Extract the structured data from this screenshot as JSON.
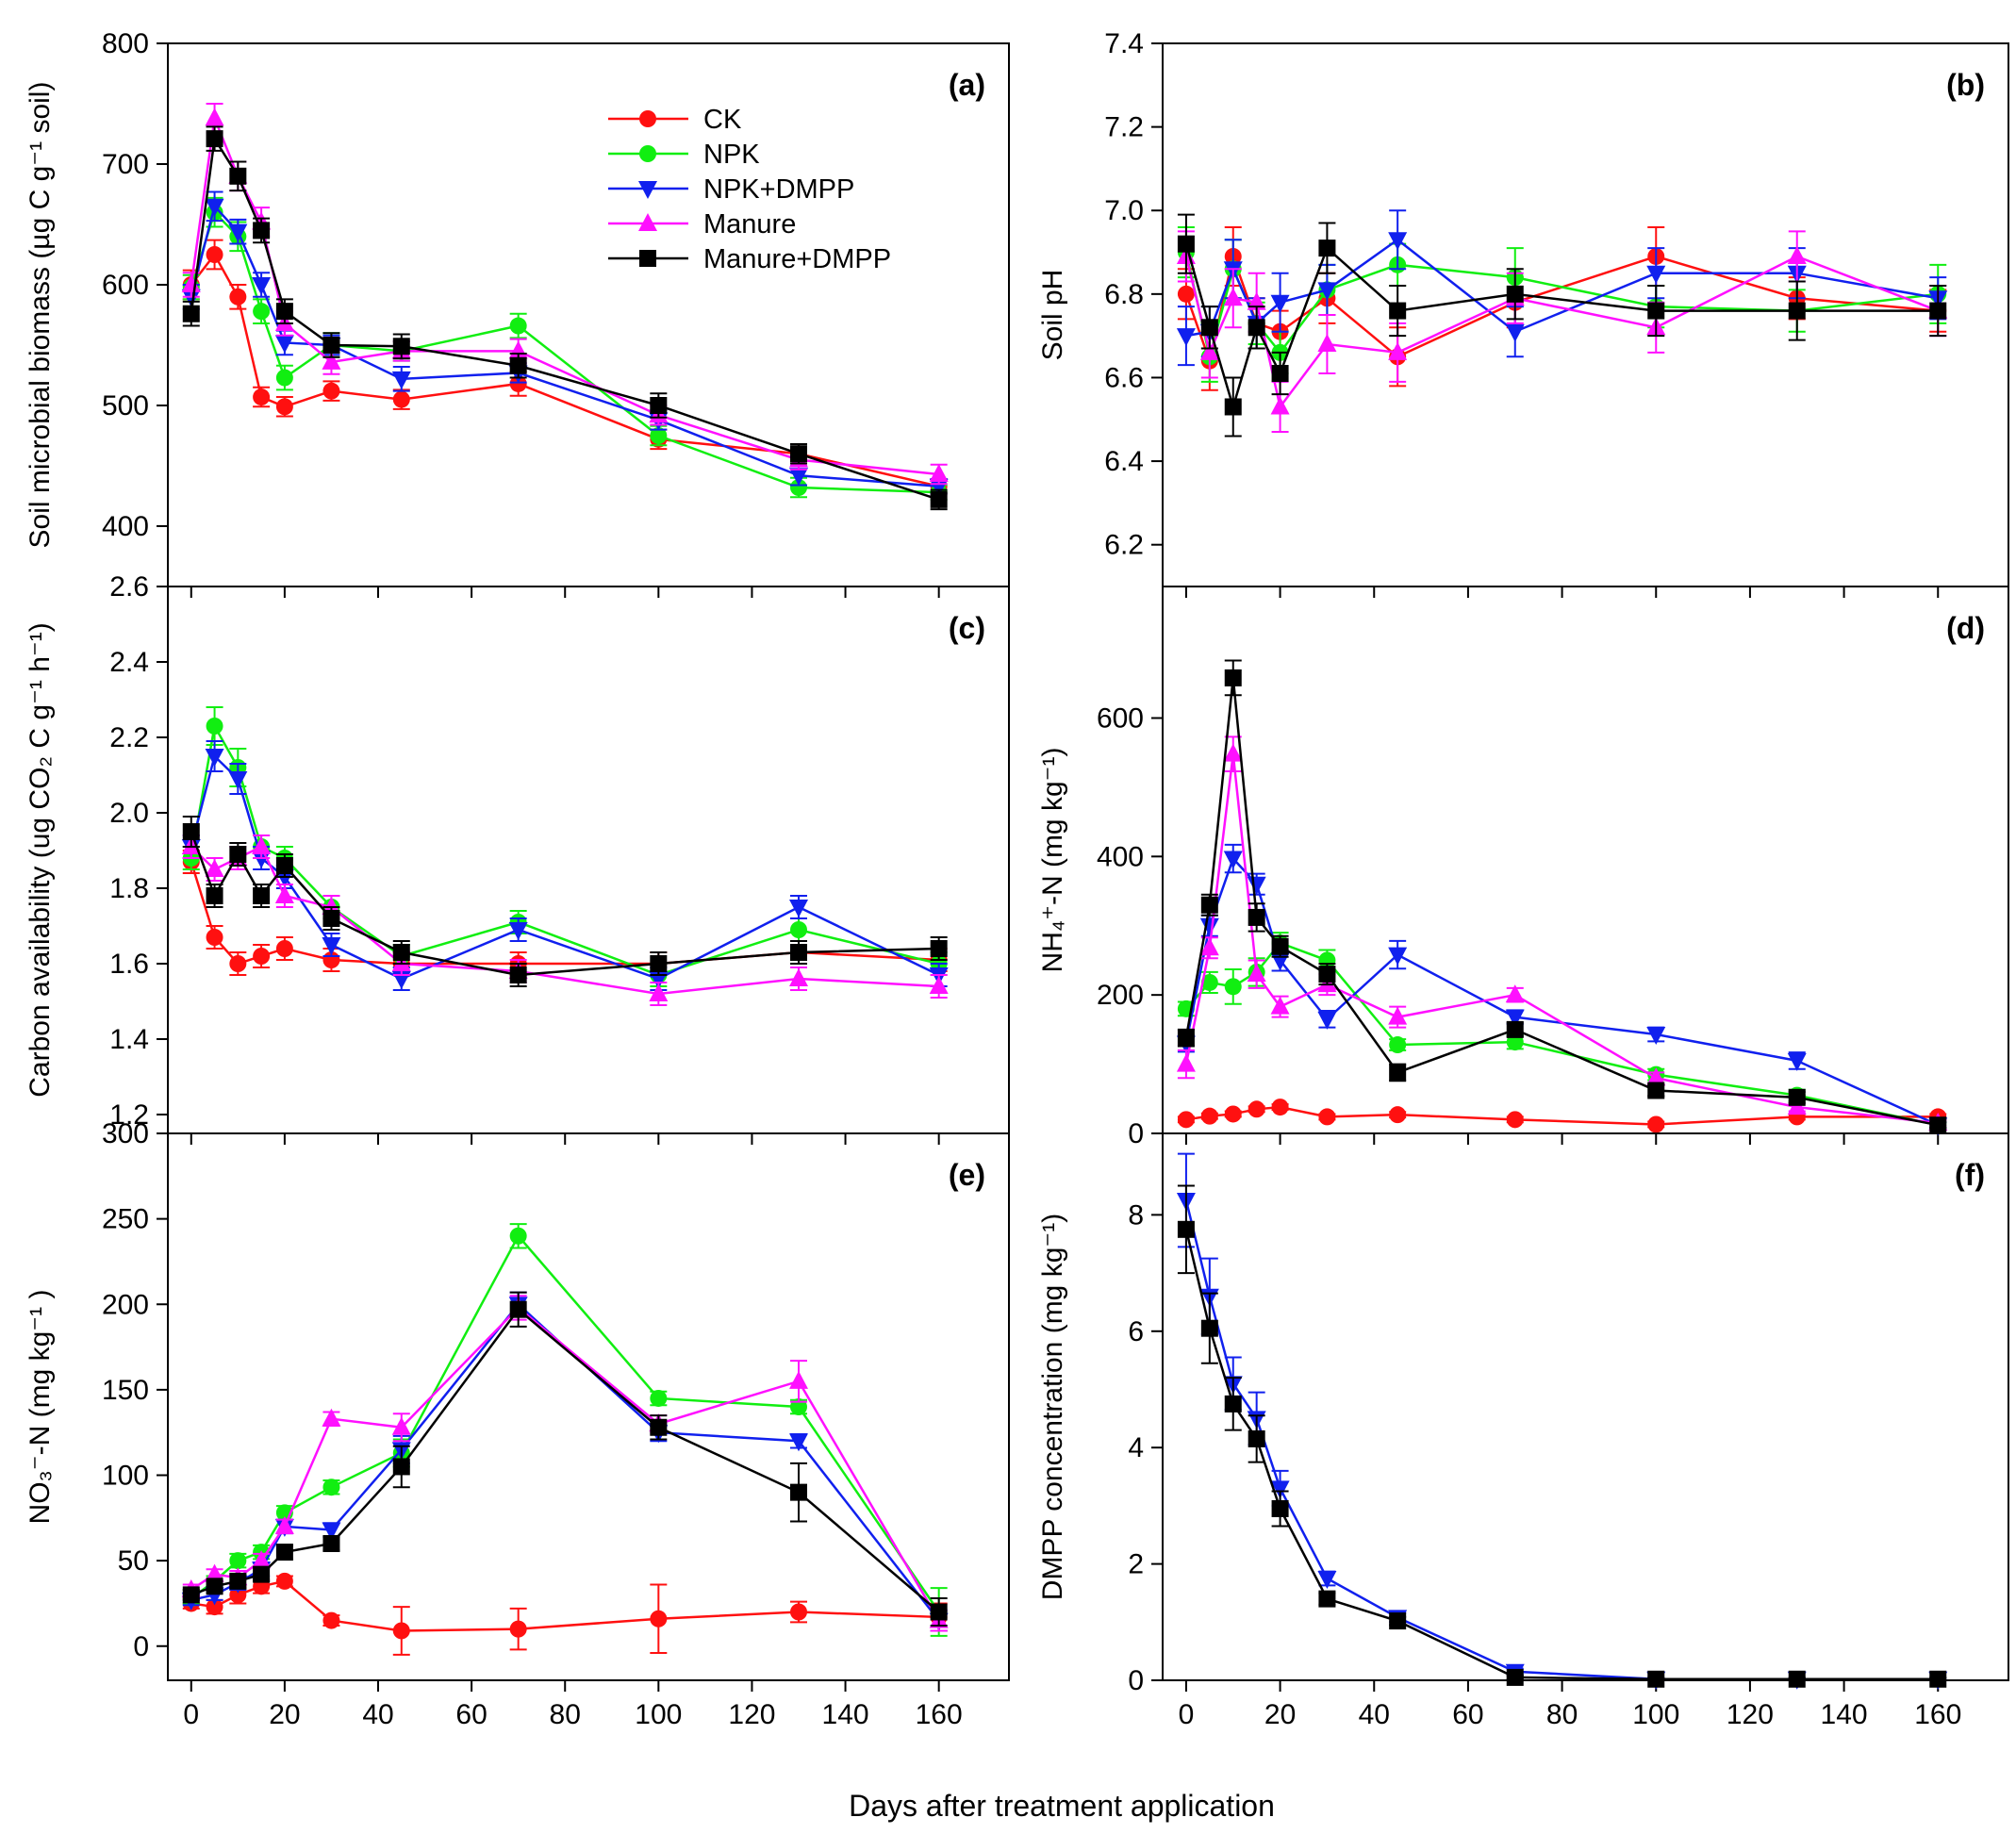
{
  "figure": {
    "xlabel": "Days after treatment application",
    "colors": {
      "CK": "#ff1010",
      "NPK": "#11ee11",
      "NPK+DMPP": "#1020ee",
      "Manure": "#ff10ff",
      "Manure+DMPP": "#000000"
    },
    "markers": {
      "CK": "circle",
      "NPK": "circle",
      "NPK+DMPP": "triangle-down",
      "Manure": "triangle-up",
      "Manure+DMPP": "square"
    }
  },
  "legend": {
    "entries": [
      "CK",
      "NPK",
      "NPK+DMPP",
      "Manure",
      "Manure+DMPP"
    ]
  },
  "chart_data": [
    {
      "type": "line",
      "panel": "(a)",
      "title": "(a)",
      "ylabel": "Soil microbial biomass (µg C g⁻¹ soil)",
      "xlabel": "",
      "xlim": [
        -5,
        175
      ],
      "ylim": [
        350,
        800
      ],
      "yticks": [
        400,
        500,
        600,
        700,
        800
      ],
      "x": [
        0,
        5,
        10,
        15,
        20,
        30,
        45,
        70,
        100,
        130,
        160
      ],
      "series": [
        {
          "name": "CK",
          "values": [
            600,
            625,
            590,
            507,
            499,
            512,
            505,
            518,
            472,
            460,
            433
          ],
          "errors": [
            12,
            12,
            10,
            8,
            8,
            8,
            8,
            10,
            8,
            8,
            6
          ]
        },
        {
          "name": "NPK",
          "values": [
            598,
            660,
            640,
            578,
            523,
            550,
            545,
            566,
            475,
            432,
            428
          ],
          "errors": [
            10,
            12,
            12,
            10,
            10,
            10,
            8,
            10,
            8,
            8,
            6
          ]
        },
        {
          "name": "NPK+DMPP",
          "values": [
            590,
            665,
            644,
            600,
            552,
            550,
            522,
            527,
            488,
            442,
            433
          ],
          "errors": [
            10,
            12,
            10,
            10,
            10,
            8,
            10,
            8,
            8,
            8,
            6
          ]
        },
        {
          "name": "Manure",
          "values": [
            600,
            738,
            690,
            652,
            568,
            536,
            545,
            545,
            492,
            455,
            443
          ],
          "errors": [
            10,
            12,
            12,
            12,
            10,
            10,
            8,
            10,
            8,
            8,
            8
          ]
        },
        {
          "name": "Manure+DMPP",
          "values": [
            576,
            721,
            690,
            645,
            578,
            550,
            549,
            533,
            500,
            460,
            422
          ],
          "errors": [
            10,
            10,
            12,
            10,
            10,
            10,
            10,
            10,
            10,
            8,
            8
          ]
        }
      ]
    },
    {
      "type": "line",
      "panel": "(b)",
      "title": "(b)",
      "ylabel": "Soil pH",
      "xlabel": "",
      "xlim": [
        -5,
        175
      ],
      "ylim": [
        6.1,
        7.4
      ],
      "yticks": [
        6.2,
        6.4,
        6.6,
        6.8,
        7.0,
        7.2,
        7.4
      ],
      "x": [
        0,
        5,
        10,
        15,
        20,
        30,
        45,
        70,
        100,
        130,
        160
      ],
      "series": [
        {
          "name": "CK",
          "values": [
            6.8,
            6.64,
            6.89,
            6.73,
            6.71,
            6.79,
            6.65,
            6.78,
            6.89,
            6.79,
            6.76
          ],
          "errors": [
            0.06,
            0.07,
            0.07,
            0.06,
            0.05,
            0.06,
            0.07,
            0.06,
            0.07,
            0.05,
            0.05
          ]
        },
        {
          "name": "NPK",
          "values": [
            6.9,
            6.65,
            6.86,
            6.73,
            6.66,
            6.81,
            6.87,
            6.84,
            6.77,
            6.76,
            6.8
          ],
          "errors": [
            0.06,
            0.06,
            0.07,
            0.05,
            0.05,
            0.06,
            0.05,
            0.07,
            0.05,
            0.05,
            0.07
          ]
        },
        {
          "name": "NPK+DMPP",
          "values": [
            6.7,
            6.71,
            6.86,
            6.73,
            6.78,
            6.81,
            6.93,
            6.71,
            6.85,
            6.85,
            6.79
          ],
          "errors": [
            0.07,
            0.06,
            0.07,
            0.06,
            0.07,
            0.06,
            0.07,
            0.06,
            0.06,
            0.06,
            0.05
          ]
        },
        {
          "name": "Manure",
          "values": [
            6.89,
            6.66,
            6.79,
            6.78,
            6.53,
            6.68,
            6.66,
            6.79,
            6.72,
            6.89,
            6.76
          ],
          "errors": [
            0.06,
            0.06,
            0.07,
            0.07,
            0.06,
            0.07,
            0.07,
            0.06,
            0.06,
            0.06,
            0.06
          ]
        },
        {
          "name": "Manure+DMPP",
          "values": [
            6.92,
            6.72,
            6.53,
            6.72,
            6.61,
            6.91,
            6.76,
            6.8,
            6.76,
            6.76,
            6.76
          ],
          "errors": [
            0.07,
            0.05,
            0.07,
            0.05,
            0.05,
            0.06,
            0.06,
            0.06,
            0.06,
            0.07,
            0.06
          ]
        }
      ]
    },
    {
      "type": "line",
      "panel": "(c)",
      "title": "(c)",
      "ylabel": "Carbon availability (ug CO₂ C g⁻¹ h⁻¹)",
      "xlabel": "",
      "xlim": [
        -5,
        175
      ],
      "ylim": [
        1.15,
        2.6
      ],
      "yticks": [
        1.2,
        1.4,
        1.6,
        1.8,
        2.0,
        2.2,
        2.4,
        2.6
      ],
      "x": [
        0,
        5,
        10,
        15,
        20,
        30,
        45,
        70,
        100,
        130,
        160
      ],
      "series": [
        {
          "name": "CK",
          "values": [
            1.87,
            1.67,
            1.6,
            1.62,
            1.64,
            1.61,
            1.6,
            1.6,
            1.6,
            1.63,
            1.61
          ],
          "errors": [
            0.03,
            0.03,
            0.03,
            0.03,
            0.03,
            0.03,
            0.03,
            0.03,
            0.03,
            0.03,
            0.03
          ]
        },
        {
          "name": "NPK",
          "values": [
            1.88,
            2.23,
            2.12,
            1.91,
            1.88,
            1.75,
            1.62,
            1.71,
            1.57,
            1.69,
            1.6
          ],
          "errors": [
            0.03,
            0.05,
            0.05,
            0.03,
            0.03,
            0.03,
            0.03,
            0.03,
            0.03,
            0.03,
            0.03
          ]
        },
        {
          "name": "NPK+DMPP",
          "values": [
            1.91,
            2.15,
            2.09,
            1.88,
            1.83,
            1.65,
            1.56,
            1.69,
            1.56,
            1.75,
            1.57
          ],
          "errors": [
            0.03,
            0.04,
            0.04,
            0.03,
            0.03,
            0.03,
            0.03,
            0.03,
            0.03,
            0.03,
            0.03
          ]
        },
        {
          "name": "Manure",
          "values": [
            1.91,
            1.85,
            1.88,
            1.91,
            1.78,
            1.75,
            1.6,
            1.58,
            1.52,
            1.56,
            1.54
          ],
          "errors": [
            0.03,
            0.03,
            0.03,
            0.03,
            0.03,
            0.03,
            0.03,
            0.03,
            0.03,
            0.03,
            0.03
          ]
        },
        {
          "name": "Manure+DMPP",
          "values": [
            1.95,
            1.78,
            1.89,
            1.78,
            1.86,
            1.72,
            1.63,
            1.57,
            1.6,
            1.63,
            1.64
          ],
          "errors": [
            0.04,
            0.03,
            0.03,
            0.03,
            0.03,
            0.03,
            0.03,
            0.03,
            0.03,
            0.03,
            0.03
          ]
        }
      ]
    },
    {
      "type": "line",
      "panel": "(d)",
      "title": "(d)",
      "ylabel": "NH₄⁺-N (mg kg⁻¹)",
      "xlabel": "",
      "xlim": [
        -5,
        175
      ],
      "ylim": [
        0,
        790
      ],
      "yticks": [
        0,
        200,
        400,
        600
      ],
      "x": [
        0,
        5,
        10,
        15,
        20,
        30,
        45,
        70,
        100,
        130,
        160
      ],
      "series": [
        {
          "name": "CK",
          "values": [
            20,
            25,
            28,
            35,
            38,
            24,
            27,
            20,
            13,
            24,
            24
          ],
          "errors": [
            4,
            4,
            4,
            4,
            4,
            4,
            4,
            4,
            4,
            4,
            4
          ]
        },
        {
          "name": "NPK",
          "values": [
            180,
            218,
            212,
            233,
            275,
            250,
            128,
            132,
            85,
            55,
            12
          ],
          "errors": [
            10,
            15,
            25,
            20,
            15,
            15,
            8,
            10,
            8,
            8,
            4
          ]
        },
        {
          "name": "NPK+DMPP",
          "values": [
            130,
            300,
            397,
            360,
            250,
            165,
            258,
            168,
            143,
            105,
            12
          ],
          "errors": [
            12,
            15,
            20,
            15,
            15,
            12,
            20,
            10,
            10,
            12,
            4
          ]
        },
        {
          "name": "Manure",
          "values": [
            100,
            268,
            548,
            230,
            183,
            215,
            168,
            200,
            80,
            38,
            15
          ],
          "errors": [
            20,
            15,
            25,
            20,
            15,
            15,
            15,
            10,
            8,
            6,
            4
          ]
        },
        {
          "name": "Manure+DMPP",
          "values": [
            138,
            330,
            658,
            312,
            270,
            230,
            88,
            150,
            62,
            52,
            12
          ],
          "errors": [
            12,
            15,
            25,
            20,
            15,
            15,
            12,
            10,
            8,
            8,
            4
          ]
        }
      ]
    },
    {
      "type": "line",
      "panel": "(e)",
      "title": "(e)",
      "ylabel": "NO₃⁻-N (mg kg⁻¹ )",
      "xlabel": "",
      "xlim": [
        -5,
        175
      ],
      "ylim": [
        -20,
        300
      ],
      "yticks": [
        0,
        50,
        100,
        150,
        200,
        250,
        300
      ],
      "x": [
        0,
        5,
        10,
        15,
        20,
        30,
        45,
        70,
        100,
        130,
        160
      ],
      "series": [
        {
          "name": "CK",
          "values": [
            25,
            23,
            30,
            35,
            38,
            15,
            9,
            10,
            16,
            20,
            17
          ],
          "errors": [
            3,
            4,
            5,
            4,
            3,
            3,
            14,
            12,
            20,
            6,
            8
          ]
        },
        {
          "name": "NPK",
          "values": [
            28,
            38,
            50,
            55,
            78,
            93,
            113,
            240,
            145,
            140,
            20
          ],
          "errors": [
            3,
            3,
            4,
            4,
            4,
            4,
            8,
            7,
            4,
            4,
            14
          ]
        },
        {
          "name": "NPK+DMPP",
          "values": [
            27,
            30,
            37,
            45,
            70,
            68,
            115,
            200,
            125,
            120,
            15
          ],
          "errors": [
            3,
            3,
            4,
            4,
            4,
            4,
            8,
            7,
            5,
            4,
            6
          ]
        },
        {
          "name": "Manure",
          "values": [
            33,
            42,
            40,
            50,
            70,
            133,
            128,
            198,
            130,
            155,
            15
          ],
          "errors": [
            3,
            3,
            4,
            4,
            4,
            4,
            8,
            7,
            5,
            12,
            6
          ]
        },
        {
          "name": "Manure+DMPP",
          "values": [
            30,
            35,
            38,
            42,
            55,
            60,
            105,
            197,
            128,
            90,
            20
          ],
          "errors": [
            3,
            3,
            4,
            4,
            4,
            4,
            12,
            10,
            7,
            17,
            8
          ]
        }
      ]
    },
    {
      "type": "line",
      "panel": "(f)",
      "title": "(f)",
      "ylabel": "DMPP concentration (mg kg⁻¹)",
      "xlabel": "Days after treatment application",
      "xlim": [
        -5,
        175
      ],
      "ylim": [
        0,
        9.4
      ],
      "yticks": [
        0,
        2,
        4,
        6,
        8
      ],
      "x": [
        0,
        5,
        10,
        15,
        20,
        30,
        45,
        70,
        100,
        130,
        160
      ],
      "series": [
        {
          "name": "NPK+DMPP",
          "values": [
            8.25,
            6.6,
            5.1,
            4.5,
            3.3,
            1.75,
            1.08,
            0.15,
            0.02,
            0.02,
            0.02
          ],
          "errors": [
            0.8,
            0.65,
            0.45,
            0.45,
            0.3,
            0.12,
            0.08,
            0.05,
            0.02,
            0.02,
            0.02
          ]
        },
        {
          "name": "Manure+DMPP",
          "values": [
            7.75,
            6.05,
            4.75,
            4.15,
            2.95,
            1.4,
            1.02,
            0.05,
            0.02,
            0.02,
            0.02
          ],
          "errors": [
            0.75,
            0.6,
            0.45,
            0.4,
            0.3,
            0.1,
            0.07,
            0.03,
            0.02,
            0.02,
            0.02
          ]
        }
      ]
    }
  ],
  "xticks": [
    0,
    20,
    40,
    60,
    80,
    100,
    120,
    140,
    160
  ]
}
